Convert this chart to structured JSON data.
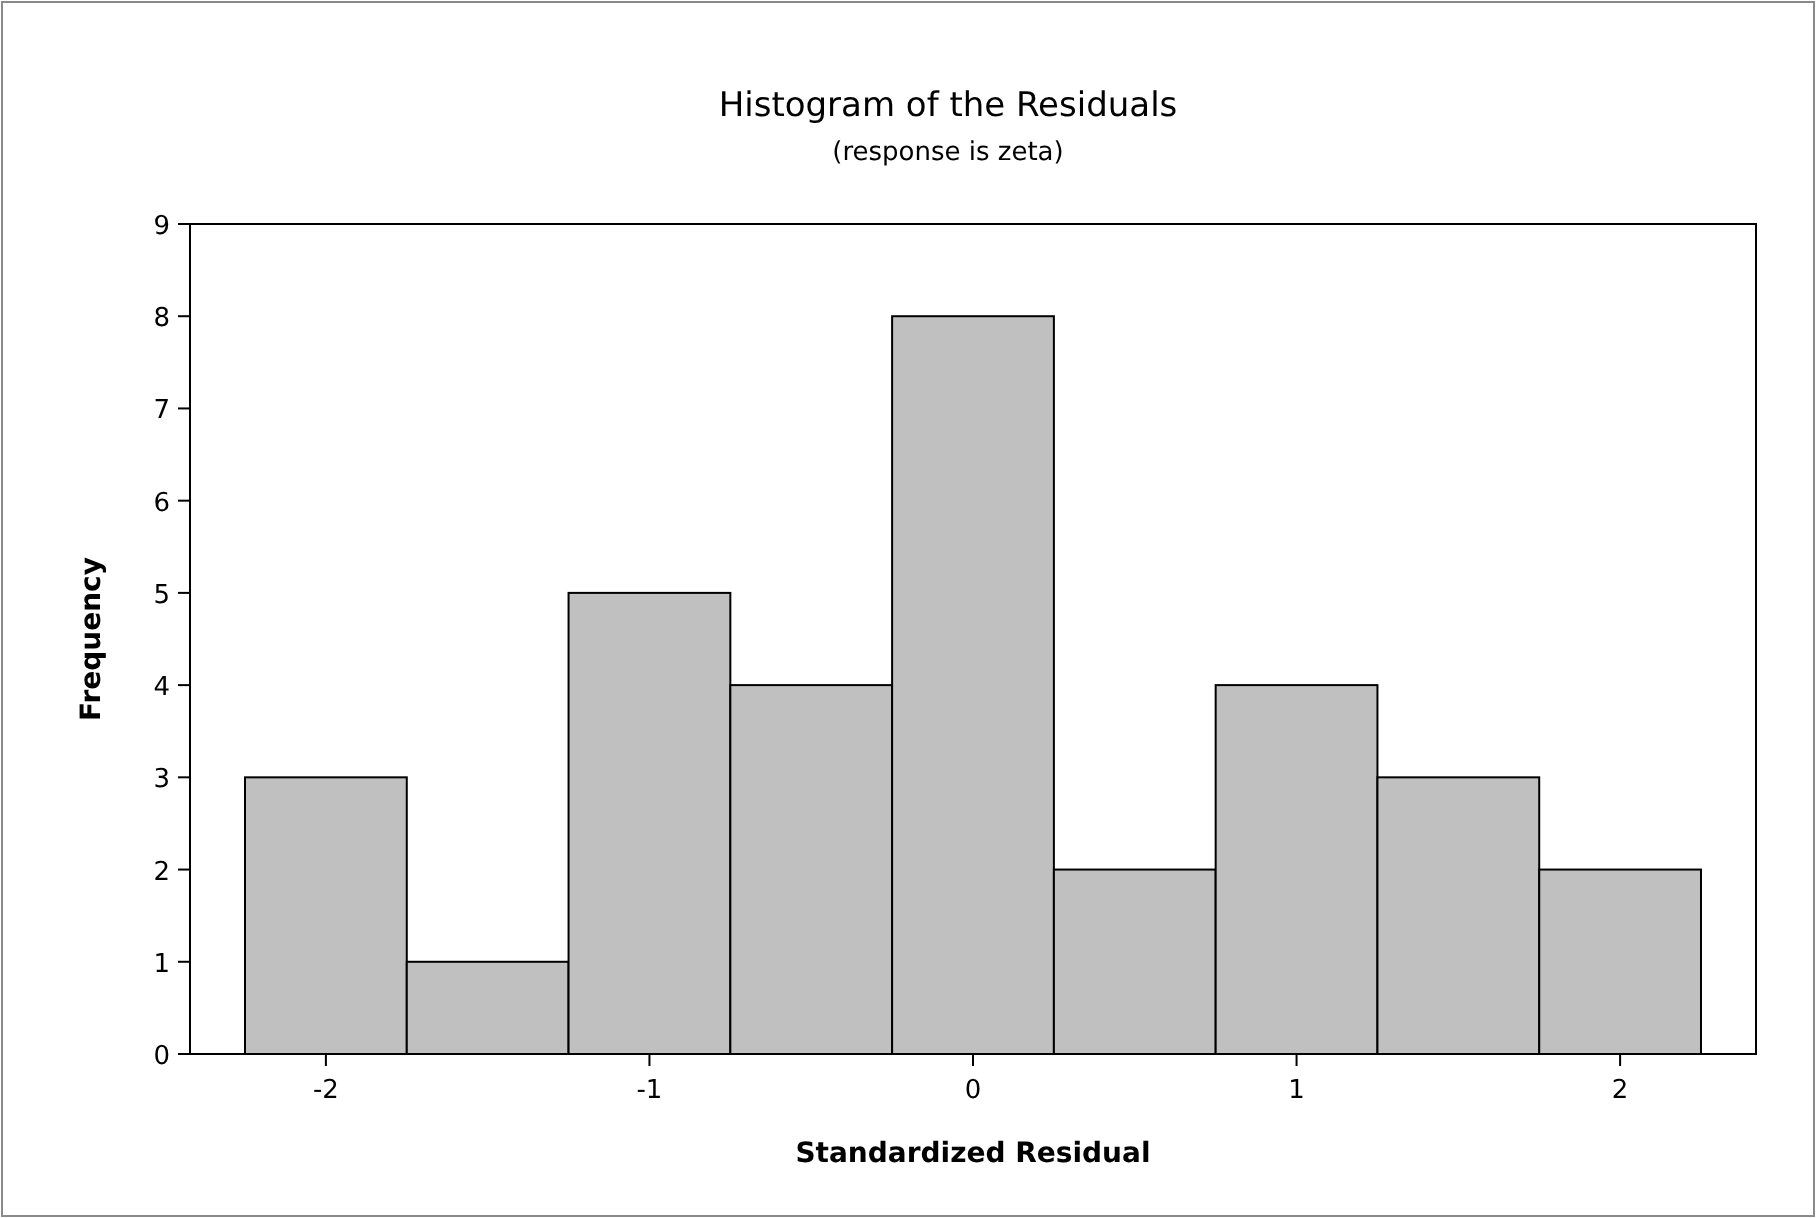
{
  "chart_data": {
    "type": "histogram",
    "title": "Histogram of the Residuals",
    "subtitle": "(response is zeta)",
    "xlabel": "Standardized Residual",
    "ylabel": "Frequency",
    "bins": [
      -2.25,
      -1.75,
      -1.25,
      -0.75,
      -0.25,
      0.25,
      0.75,
      1.25,
      1.75,
      2.25
    ],
    "values": [
      3,
      1,
      5,
      4,
      8,
      2,
      4,
      3,
      2
    ],
    "color": "#c0c0c0",
    "xlim": [
      -2.42,
      2.42
    ],
    "xticks": [
      -2,
      -1,
      0,
      1,
      2
    ],
    "ylim": [
      0,
      9
    ],
    "yticks": [
      0,
      1,
      2,
      3,
      4,
      5,
      6,
      7,
      8,
      9
    ],
    "grid": false
  }
}
